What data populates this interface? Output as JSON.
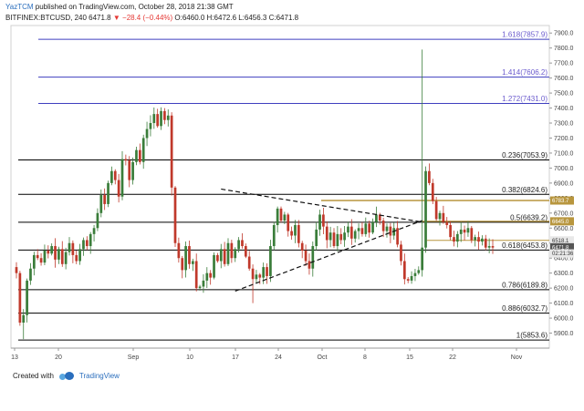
{
  "header": {
    "user": "YazTCM",
    "published_text": " published on TradingView.com, October 28, 2018 21:38 GMT",
    "symbol": "BITFINEX:BTCUSD, 240",
    "last": "6471.8",
    "change": "−28.4 (−0.44%)",
    "ohlc": "O:6460.0 H:6472.6 L:6456.3 C:6471.8"
  },
  "footer": {
    "created_with": "Created with",
    "brand": "TradingView"
  },
  "colors": {
    "up": "#3a7d3a",
    "down": "#c0392b",
    "fib_black": "#000000",
    "fib_blue": "#3f3fbf",
    "gold": "#b8963e",
    "price_tag": "#555555"
  },
  "chart_data": {
    "type": "candlestick",
    "ylim": [
      5800,
      7950
    ],
    "y_ticks": [
      "7900.0",
      "7800.0",
      "7700.0",
      "7600.0",
      "7500.0",
      "7400.0",
      "7300.0",
      "7200.0",
      "7100.0",
      "7000.0",
      "6900.0",
      "6800.0",
      "6700.0",
      "6600.0",
      "6500.0",
      "6400.0",
      "6300.0",
      "6200.0",
      "6100.0",
      "6000.0",
      "5900.0"
    ],
    "x_ticks": [
      "13",
      "20",
      "Sep",
      "10",
      "17",
      "24",
      "Oct",
      "8",
      "15",
      "22",
      "Nov"
    ],
    "fib_levels": [
      {
        "label": "1.618(7857.9)",
        "value": 7857.9,
        "color": "blue"
      },
      {
        "label": "1.414(7606.2)",
        "value": 7606.2,
        "color": "blue"
      },
      {
        "label": "1.272(7431.0)",
        "value": 7431.0,
        "color": "blue"
      },
      {
        "label": "0.236(7053.9)",
        "value": 7053.9,
        "color": "black"
      },
      {
        "label": "0.382(6824.6)",
        "value": 6824.6,
        "color": "black"
      },
      {
        "label": "0.5(6639.2)",
        "value": 6639.2,
        "color": "black"
      },
      {
        "label": "0.618(6453.8)",
        "value": 6453.8,
        "color": "black"
      },
      {
        "label": "0.786(6189.8)",
        "value": 6189.8,
        "color": "black"
      },
      {
        "label": "0.886(6032.7)",
        "value": 6032.7,
        "color": "black"
      },
      {
        "label": "1(5853.6)",
        "value": 5853.6,
        "color": "black"
      }
    ],
    "price_tags": [
      {
        "label": "6783.7",
        "value": 6783.7,
        "style": "gold"
      },
      {
        "label": "6645.0",
        "value": 6645.0,
        "style": "gold"
      },
      {
        "label": "6518.1",
        "value": 6518.1,
        "style": "light"
      },
      {
        "label": "6471.8",
        "value": 6471.8,
        "style": "dark"
      },
      {
        "label": "02:21:36",
        "value": 6431.0,
        "style": "light"
      }
    ],
    "close_path": [
      6300,
      5970,
      6020,
      6250,
      6330,
      6420,
      6400,
      6370,
      6450,
      6430,
      6480,
      6390,
      6460,
      6360,
      6440,
      6500,
      6420,
      6380,
      6460,
      6520,
      6480,
      6560,
      6600,
      6700,
      6820,
      6760,
      6900,
      6980,
      6920,
      6810,
      7060,
      7050,
      6920,
      7040,
      7120,
      7040,
      7200,
      7260,
      7300,
      7360,
      7280,
      7380,
      7320,
      7350,
      6870,
      6500,
      6400,
      6320,
      6480,
      6360,
      6380,
      6200,
      6210,
      6250,
      6300,
      6270,
      6420,
      6380,
      6460,
      6360,
      6500,
      6400,
      6460,
      6520,
      6480,
      6410,
      6330,
      6260,
      6290,
      6270,
      6340,
      6280,
      6480,
      6620,
      6730,
      6650,
      6690,
      6580,
      6550,
      6620,
      6500,
      6450,
      6380,
      6330,
      6480,
      6590,
      6690,
      6610,
      6520,
      6570,
      6480,
      6560,
      6520,
      6570,
      6610,
      6530,
      6580,
      6600,
      6560,
      6630,
      6570,
      6640,
      6690,
      6650,
      6580,
      6610,
      6550,
      6600,
      6490,
      6380,
      6260,
      6250,
      6280,
      6300,
      6320,
      6470,
      6980,
      6900,
      6780,
      6660,
      6700,
      6640,
      6620,
      6540,
      6510,
      6560,
      6590,
      6570,
      6600,
      6520,
      6540,
      6510,
      6530,
      6470,
      6480,
      6470
    ],
    "spikes": [
      {
        "index": 115,
        "high": 7790,
        "low": 6480
      },
      {
        "index": 67,
        "high": 6300,
        "low": 6100
      },
      {
        "index": 2,
        "high": 6060,
        "low": 5860
      }
    ],
    "trend_lines": [
      {
        "from": [
          62,
          6180
        ],
        "to": [
          115,
          6650
        ],
        "style": "dashed"
      },
      {
        "from": [
          58,
          6860
        ],
        "to": [
          115,
          6640
        ],
        "style": "dashed"
      }
    ]
  }
}
